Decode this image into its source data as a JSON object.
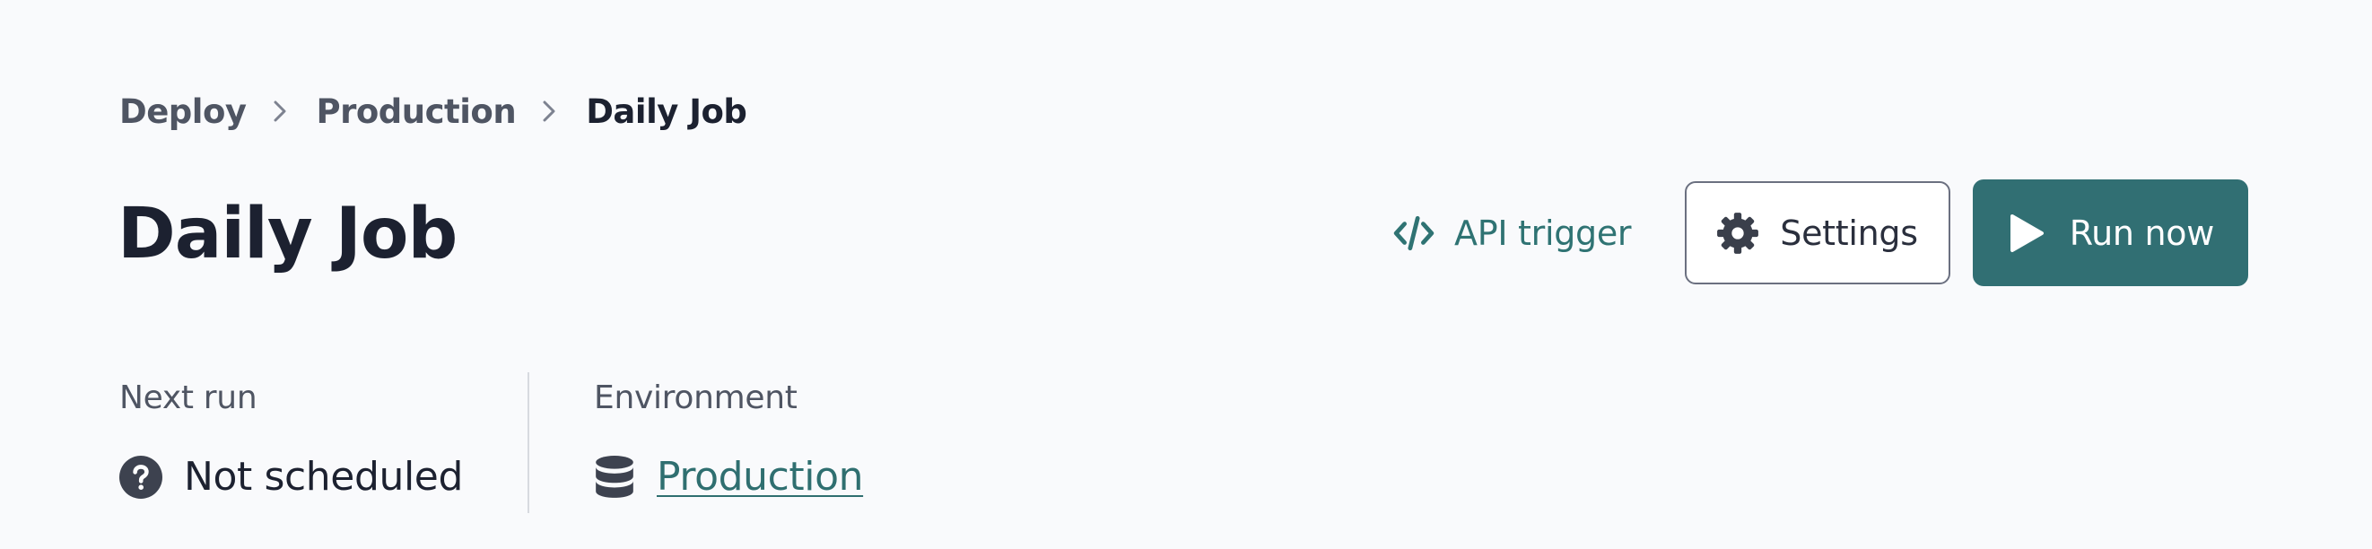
{
  "breadcrumb": {
    "items": [
      "Deploy",
      "Production",
      "Daily Job"
    ]
  },
  "page": {
    "title": "Daily Job"
  },
  "actions": {
    "api_trigger_label": "API trigger",
    "settings_label": "Settings",
    "run_now_label": "Run now"
  },
  "meta": {
    "next_run": {
      "label": "Next run",
      "value": "Not scheduled"
    },
    "environment": {
      "label": "Environment",
      "value": "Production"
    }
  },
  "icons": {
    "breadcrumb_separator": "chevron-right-icon",
    "api_trigger": "code-icon",
    "settings": "gear-icon",
    "run_now": "play-icon",
    "next_run": "question-circle-icon",
    "environment": "database-icon"
  },
  "colors": {
    "accent": "#316f73",
    "link": "#2f7373",
    "text": "#1c2130",
    "muted": "#4f5563",
    "background": "#f9fafc"
  }
}
